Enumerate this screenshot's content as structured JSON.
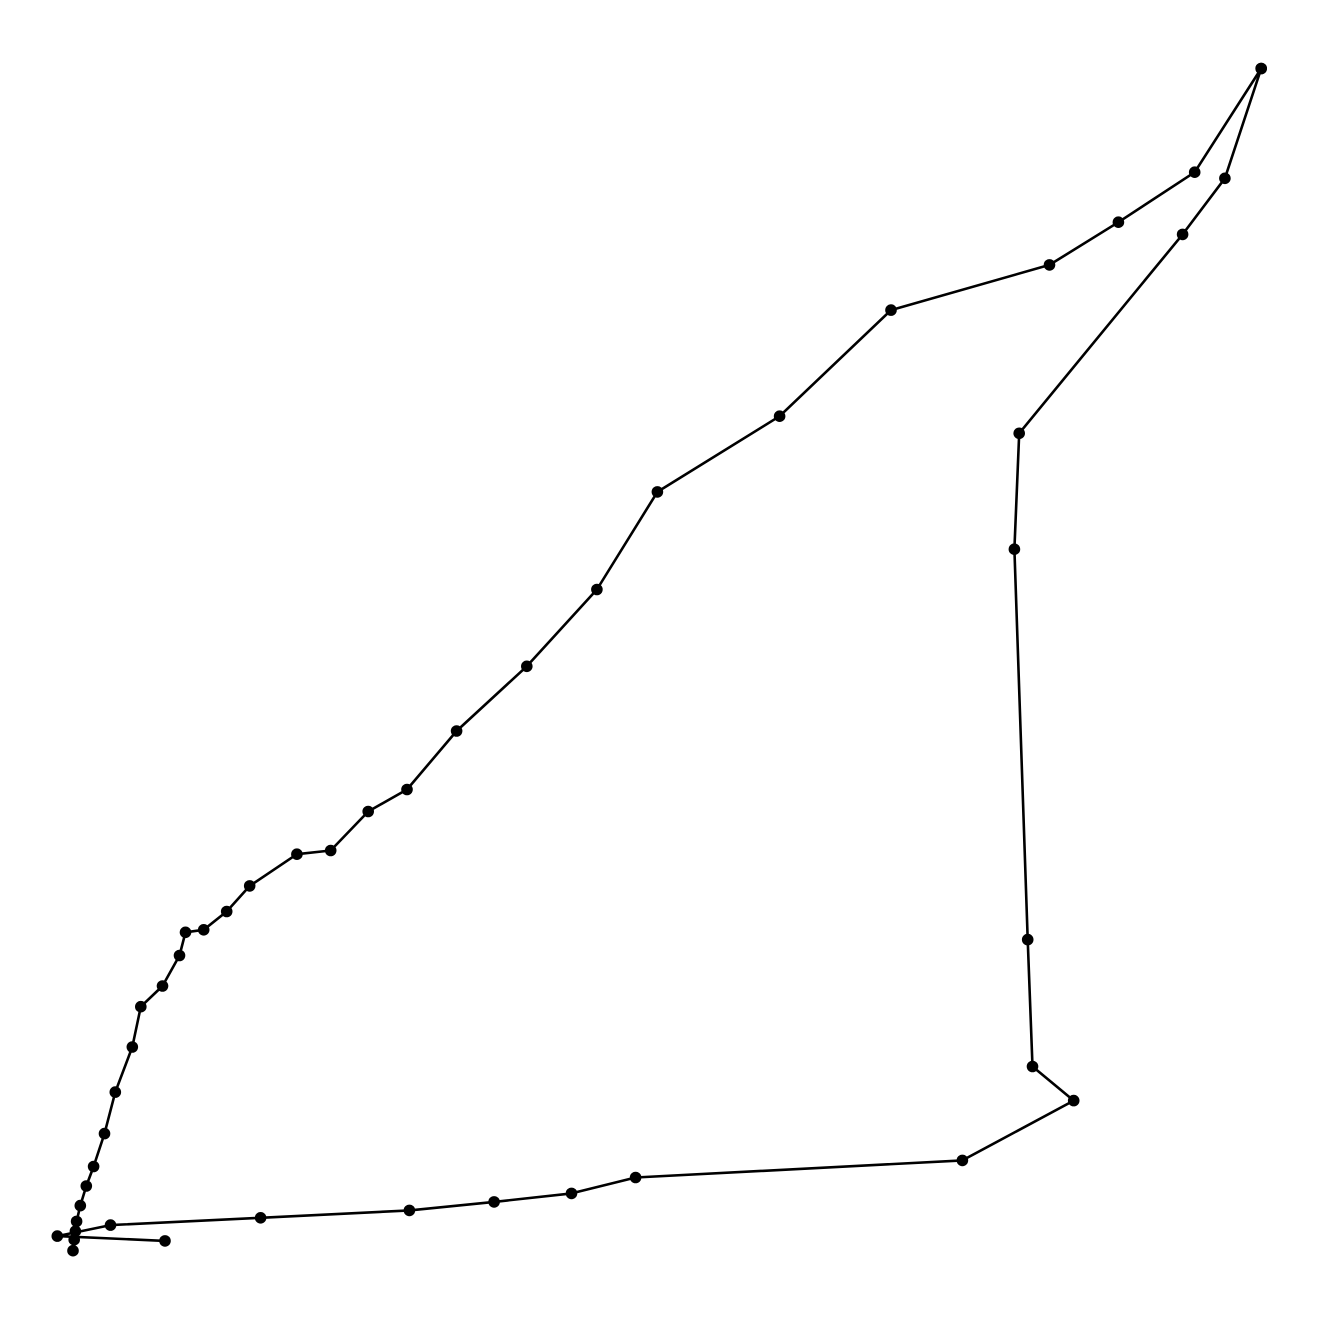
{
  "chart_data": {
    "type": "line",
    "title": "",
    "xlabel": "",
    "ylabel": "",
    "axes_visible": false,
    "grid": false,
    "legend": "none",
    "xlim": [
      0,
      1
    ],
    "ylim": [
      0,
      1
    ],
    "series": [
      {
        "color": "#000000",
        "marker": "circle",
        "points": [
          [
            0.0,
            0.015
          ],
          [
            0.001,
            0.024
          ],
          [
            0.002,
            0.031
          ],
          [
            0.003,
            0.039
          ],
          [
            0.006,
            0.052
          ],
          [
            0.011,
            0.068
          ],
          [
            0.017,
            0.084
          ],
          [
            0.026,
            0.111
          ],
          [
            0.035,
            0.145
          ],
          [
            0.049,
            0.182
          ],
          [
            0.056,
            0.215
          ],
          [
            0.074,
            0.232
          ],
          [
            0.088,
            0.257
          ],
          [
            0.093,
            0.276
          ],
          [
            0.108,
            0.278
          ],
          [
            0.127,
            0.293
          ],
          [
            0.146,
            0.314
          ],
          [
            0.185,
            0.34
          ],
          [
            0.213,
            0.343
          ],
          [
            0.244,
            0.375
          ],
          [
            0.276,
            0.393
          ],
          [
            0.317,
            0.441
          ],
          [
            0.375,
            0.494
          ],
          [
            0.433,
            0.557
          ],
          [
            0.483,
            0.637
          ],
          [
            0.584,
            0.699
          ],
          [
            0.676,
            0.786
          ],
          [
            0.807,
            0.823
          ],
          [
            0.864,
            0.858
          ],
          [
            0.927,
            0.899
          ],
          [
            0.982,
            0.984
          ]
        ]
      },
      {
        "color": "#000000",
        "marker": "circle",
        "points": [
          [
            0.982,
            0.984
          ],
          [
            0.952,
            0.894
          ],
          [
            0.917,
            0.848
          ],
          [
            0.782,
            0.685
          ],
          [
            0.778,
            0.59
          ],
          [
            0.789,
            0.27
          ],
          [
            0.793,
            0.166
          ],
          [
            0.827,
            0.138
          ],
          [
            0.735,
            0.089
          ],
          [
            0.465,
            0.075
          ],
          [
            0.412,
            0.062
          ],
          [
            0.348,
            0.055
          ],
          [
            0.278,
            0.048
          ],
          [
            0.155,
            0.042
          ],
          [
            0.031,
            0.036
          ],
          [
            -0.013,
            0.027
          ],
          [
            0.076,
            0.023
          ]
        ]
      }
    ]
  }
}
